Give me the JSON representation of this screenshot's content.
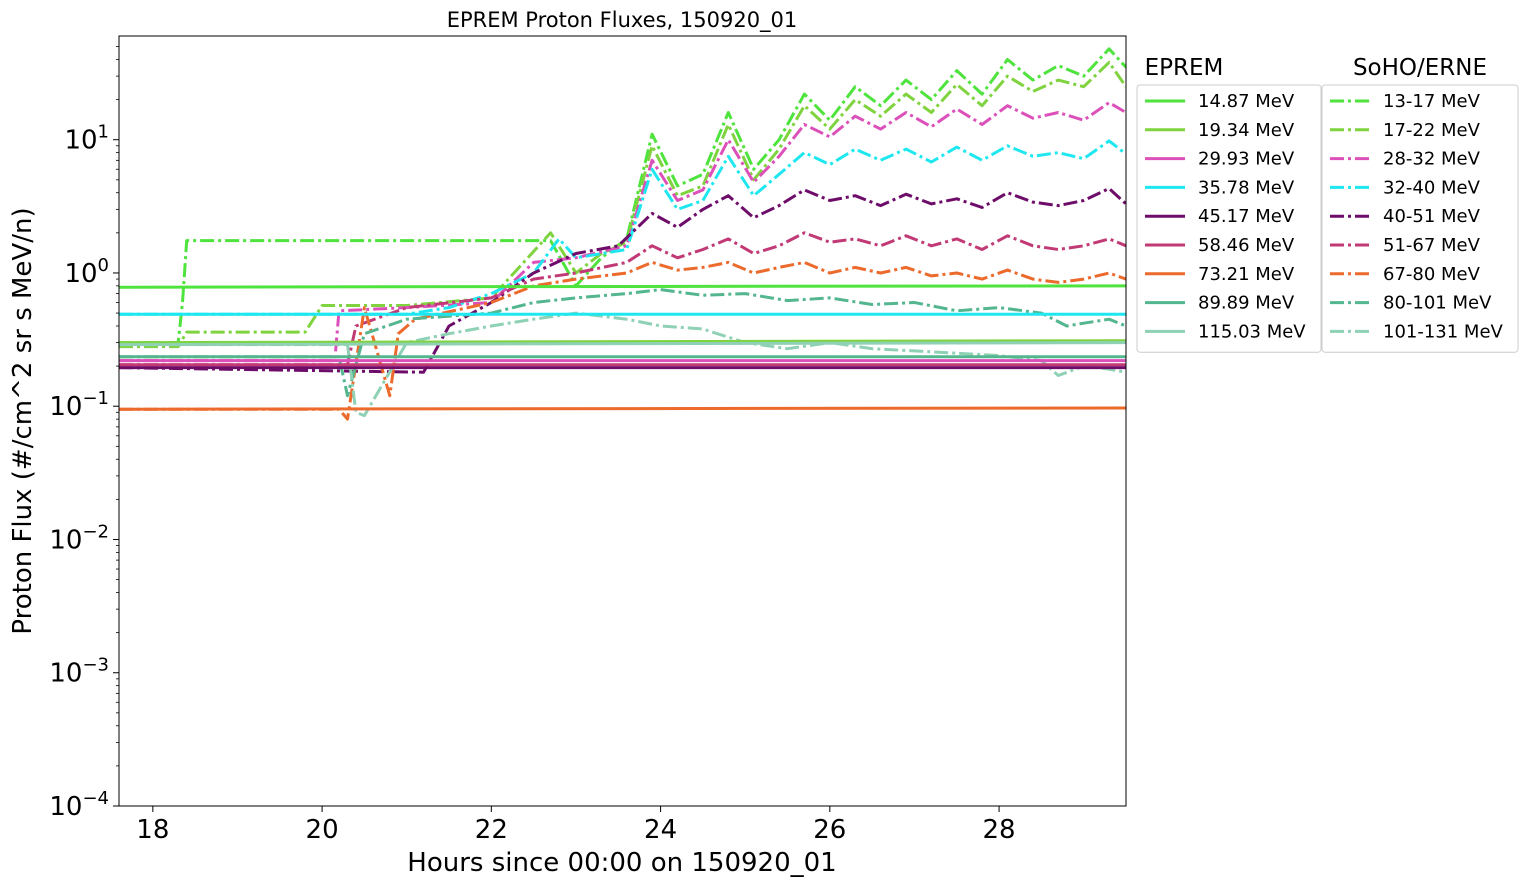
{
  "chart_data": {
    "type": "line",
    "title": "EPREM Proton Fluxes, 150920_01",
    "xlabel": "Hours since 00:00 on 150920_01",
    "ylabel": "Proton Flux (#/cm^2 sr s MeV/n)",
    "xlim": [
      17.6,
      29.5
    ],
    "ylim": [
      0.0001,
      60
    ],
    "y_scale": "log",
    "grid": false,
    "x_ticks": [
      {
        "value": 18,
        "label": "18"
      },
      {
        "value": 20,
        "label": "20"
      },
      {
        "value": 22,
        "label": "22"
      },
      {
        "value": 24,
        "label": "24"
      },
      {
        "value": 26,
        "label": "26"
      },
      {
        "value": 28,
        "label": "28"
      }
    ],
    "y_ticks": [
      {
        "value": 0.0001,
        "base": "10",
        "exp": "−4"
      },
      {
        "value": 0.001,
        "base": "10",
        "exp": "−3"
      },
      {
        "value": 0.01,
        "base": "10",
        "exp": "−2"
      },
      {
        "value": 0.1,
        "base": "10",
        "exp": "−1"
      },
      {
        "value": 1,
        "base": "10",
        "exp": "0"
      },
      {
        "value": 10,
        "base": "10",
        "exp": "1"
      }
    ],
    "legends": [
      {
        "title": "EPREM",
        "placement": "outside-right",
        "style": "solid",
        "entries": [
          {
            "label": "14.87 MeV",
            "color": "#4fe33d"
          },
          {
            "label": "19.34 MeV",
            "color": "#7fd33f"
          },
          {
            "label": "29.93 MeV",
            "color": "#dc50b9"
          },
          {
            "label": "35.78 MeV",
            "color": "#1fe7f0"
          },
          {
            "label": "45.17 MeV",
            "color": "#6e0c6a"
          },
          {
            "label": "58.46 MeV",
            "color": "#c13a76"
          },
          {
            "label": "73.21 MeV",
            "color": "#ec6a2c"
          },
          {
            "label": "89.89 MeV",
            "color": "#54b68e"
          },
          {
            "label": "115.03 MeV",
            "color": "#8fd1b5"
          }
        ]
      },
      {
        "title": "SoHO/ERNE",
        "placement": "outside-right",
        "style": "dashdot",
        "entries": [
          {
            "label": "13-17 MeV",
            "color": "#4fe33d"
          },
          {
            "label": "17-22 MeV",
            "color": "#7fd33f"
          },
          {
            "label": "28-32 MeV",
            "color": "#dc50b9"
          },
          {
            "label": "32-40 MeV",
            "color": "#1fe7f0"
          },
          {
            "label": "40-51 MeV",
            "color": "#6e0c6a"
          },
          {
            "label": "51-67 MeV",
            "color": "#c13a76"
          },
          {
            "label": "67-80 MeV",
            "color": "#ec6a2c"
          },
          {
            "label": "80-101 MeV",
            "color": "#54b68e"
          },
          {
            "label": "101-131 MeV",
            "color": "#8fd1b5"
          }
        ]
      }
    ],
    "series": [
      {
        "name": "14.87 MeV",
        "style": "solid",
        "color": "#4fe33d",
        "x": [
          17.6,
          22.0,
          29.5
        ],
        "y": [
          0.78,
          0.79,
          0.8
        ]
      },
      {
        "name": "19.34 MeV",
        "style": "solid",
        "color": "#7fd33f",
        "x": [
          17.6,
          29.5
        ],
        "y": [
          0.3,
          0.31
        ]
      },
      {
        "name": "29.93 MeV",
        "style": "solid",
        "color": "#dc50b9",
        "x": [
          17.6,
          29.5
        ],
        "y": [
          0.22,
          0.22
        ]
      },
      {
        "name": "35.78 MeV",
        "style": "solid",
        "color": "#1fe7f0",
        "x": [
          17.6,
          29.5
        ],
        "y": [
          0.49,
          0.49
        ]
      },
      {
        "name": "45.17 MeV",
        "style": "solid",
        "color": "#6e0c6a",
        "x": [
          17.6,
          29.5
        ],
        "y": [
          0.195,
          0.195
        ]
      },
      {
        "name": "58.46 MeV",
        "style": "solid",
        "color": "#c13a76",
        "x": [
          17.6,
          29.5
        ],
        "y": [
          0.205,
          0.205
        ]
      },
      {
        "name": "73.21 MeV",
        "style": "solid",
        "color": "#ec6a2c",
        "x": [
          17.6,
          29.5
        ],
        "y": [
          0.095,
          0.097
        ]
      },
      {
        "name": "89.89 MeV",
        "style": "solid",
        "color": "#54b68e",
        "x": [
          17.6,
          29.5
        ],
        "y": [
          0.235,
          0.235
        ]
      },
      {
        "name": "115.03 MeV",
        "style": "solid",
        "color": "#8fd1b5",
        "x": [
          17.6,
          29.5
        ],
        "y": [
          0.29,
          0.3
        ]
      },
      {
        "name": "13-17 MeV",
        "style": "dashdot",
        "color": "#4fe33d",
        "x": [
          17.6,
          18.3,
          18.35,
          18.4,
          20.0,
          22.0,
          22.7,
          23.0,
          23.3,
          23.6,
          23.9,
          24.2,
          24.5,
          24.8,
          25.1,
          25.4,
          25.7,
          26.0,
          26.3,
          26.6,
          26.9,
          27.2,
          27.5,
          27.8,
          28.1,
          28.4,
          28.7,
          29.0,
          29.3,
          29.5
        ],
        "y": [
          0.3,
          0.3,
          0.6,
          1.75,
          1.75,
          1.75,
          1.75,
          0.8,
          1.3,
          1.8,
          11.0,
          4.5,
          5.5,
          16.0,
          6.0,
          10.0,
          22.0,
          14.0,
          25.0,
          18.0,
          28.0,
          20.0,
          33.0,
          22.0,
          40.0,
          28.0,
          36.0,
          30.0,
          48.0,
          35.0
        ]
      },
      {
        "name": "17-22 MeV",
        "style": "dashdot",
        "color": "#7fd33f",
        "x": [
          17.6,
          18.3,
          18.4,
          19.8,
          20.0,
          21.0,
          22.0,
          22.7,
          23.0,
          23.3,
          23.6,
          23.9,
          24.2,
          24.5,
          24.8,
          25.1,
          25.4,
          25.7,
          26.0,
          26.3,
          26.6,
          26.9,
          27.2,
          27.5,
          27.8,
          28.1,
          28.4,
          28.7,
          29.0,
          29.3,
          29.5
        ],
        "y": [
          0.28,
          0.28,
          0.36,
          0.36,
          0.57,
          0.57,
          0.65,
          2.0,
          1.0,
          1.4,
          1.7,
          9.0,
          3.8,
          4.5,
          13.0,
          5.0,
          8.5,
          18.0,
          12.0,
          20.0,
          15.0,
          22.0,
          16.0,
          26.0,
          18.0,
          30.0,
          23.0,
          28.0,
          25.0,
          38.0,
          25.0
        ]
      },
      {
        "name": "28-32 MeV",
        "style": "dashdot",
        "color": "#dc50b9",
        "x": [
          17.6,
          20.15,
          20.2,
          21.0,
          22.0,
          22.5,
          23.0,
          23.6,
          23.9,
          24.2,
          24.5,
          24.8,
          25.1,
          25.4,
          25.7,
          26.0,
          26.3,
          26.6,
          26.9,
          27.2,
          27.5,
          27.8,
          28.1,
          28.4,
          28.7,
          29.0,
          29.3,
          29.5
        ],
        "y": [
          0.22,
          0.22,
          0.52,
          0.55,
          0.6,
          1.2,
          1.3,
          1.6,
          7.0,
          3.5,
          4.2,
          10.0,
          4.8,
          7.5,
          13.0,
          10.5,
          15.0,
          12.0,
          16.0,
          12.5,
          17.0,
          13.0,
          18.0,
          14.5,
          16.0,
          14.0,
          19.0,
          16.0
        ]
      },
      {
        "name": "32-40 MeV",
        "style": "dashdot",
        "color": "#1fe7f0",
        "x": [
          17.6,
          21.0,
          21.5,
          22.0,
          22.5,
          22.8,
          23.0,
          23.6,
          23.9,
          24.2,
          24.5,
          24.8,
          25.1,
          25.4,
          25.7,
          26.0,
          26.3,
          26.6,
          26.9,
          27.2,
          27.5,
          27.8,
          28.1,
          28.4,
          28.7,
          29.0,
          29.3,
          29.5
        ],
        "y": [
          0.49,
          0.49,
          0.55,
          0.7,
          1.0,
          1.8,
          1.3,
          1.5,
          6.0,
          3.0,
          3.5,
          7.5,
          3.8,
          5.5,
          8.0,
          6.5,
          8.5,
          7.0,
          8.5,
          6.8,
          8.8,
          7.0,
          9.0,
          7.5,
          8.0,
          7.2,
          9.8,
          7.8
        ]
      },
      {
        "name": "40-51 MeV",
        "style": "dashdot",
        "color": "#6e0c6a",
        "x": [
          17.6,
          21.2,
          21.5,
          22.0,
          22.5,
          23.0,
          23.5,
          23.9,
          24.2,
          24.5,
          24.8,
          25.1,
          25.4,
          25.7,
          26.0,
          26.3,
          26.6,
          26.9,
          27.2,
          27.5,
          27.8,
          28.1,
          28.4,
          28.7,
          29.0,
          29.3,
          29.5
        ],
        "y": [
          0.195,
          0.18,
          0.4,
          0.6,
          1.0,
          1.4,
          1.6,
          2.8,
          2.2,
          3.0,
          3.8,
          2.6,
          3.2,
          4.2,
          3.5,
          3.8,
          3.2,
          3.9,
          3.3,
          3.6,
          3.1,
          4.0,
          3.4,
          3.2,
          3.5,
          4.3,
          3.3
        ]
      },
      {
        "name": "51-67 MeV",
        "style": "dashdot",
        "color": "#c13a76",
        "x": [
          17.6,
          20.3,
          20.4,
          21.0,
          22.0,
          22.5,
          23.0,
          23.6,
          23.9,
          24.2,
          24.5,
          24.8,
          25.1,
          25.4,
          25.7,
          26.0,
          26.3,
          26.6,
          26.9,
          27.2,
          27.5,
          27.8,
          28.1,
          28.4,
          28.7,
          29.0,
          29.3,
          29.5
        ],
        "y": [
          0.205,
          0.205,
          0.4,
          0.55,
          0.65,
          0.9,
          1.0,
          1.2,
          1.6,
          1.3,
          1.5,
          1.8,
          1.4,
          1.6,
          2.0,
          1.7,
          1.8,
          1.6,
          1.9,
          1.6,
          1.8,
          1.5,
          1.9,
          1.6,
          1.5,
          1.6,
          1.8,
          1.6
        ]
      },
      {
        "name": "67-80 MeV",
        "style": "dashdot",
        "color": "#ec6a2c",
        "x": [
          17.6,
          20.2,
          20.3,
          20.5,
          20.8,
          20.9,
          21.1,
          22.0,
          22.5,
          23.0,
          23.6,
          23.9,
          24.2,
          24.5,
          24.8,
          25.1,
          25.4,
          25.7,
          26.0,
          26.3,
          26.6,
          26.9,
          27.2,
          27.5,
          27.8,
          28.1,
          28.4,
          28.7,
          29.0,
          29.3,
          29.5
        ],
        "y": [
          0.095,
          0.095,
          0.08,
          0.55,
          0.12,
          0.35,
          0.45,
          0.6,
          0.8,
          0.9,
          1.0,
          1.2,
          1.05,
          1.1,
          1.2,
          1.0,
          1.1,
          1.2,
          1.0,
          1.1,
          1.0,
          1.1,
          0.95,
          1.0,
          0.9,
          1.05,
          0.9,
          0.85,
          0.9,
          1.0,
          0.9
        ]
      },
      {
        "name": "80-101 MeV",
        "style": "dashdot",
        "color": "#54b68e",
        "x": [
          17.6,
          20.2,
          20.3,
          20.5,
          21.0,
          22.0,
          22.5,
          23.0,
          23.6,
          24.0,
          24.5,
          25.0,
          25.5,
          26.0,
          26.5,
          27.0,
          27.5,
          28.0,
          28.5,
          28.8,
          29.0,
          29.3,
          29.5
        ],
        "y": [
          0.235,
          0.235,
          0.12,
          0.35,
          0.45,
          0.5,
          0.6,
          0.65,
          0.7,
          0.75,
          0.68,
          0.7,
          0.62,
          0.65,
          0.58,
          0.6,
          0.52,
          0.55,
          0.5,
          0.4,
          0.42,
          0.45,
          0.4
        ]
      },
      {
        "name": "101-131 MeV",
        "style": "dashdot",
        "color": "#8fd1b5",
        "x": [
          17.6,
          20.3,
          20.4,
          20.5,
          21.0,
          21.5,
          22.0,
          22.5,
          23.0,
          23.6,
          24.0,
          24.5,
          25.0,
          25.5,
          26.0,
          26.5,
          27.0,
          27.5,
          28.0,
          28.5,
          28.7,
          29.0,
          29.3,
          29.5
        ],
        "y": [
          0.29,
          0.29,
          0.09,
          0.085,
          0.3,
          0.35,
          0.4,
          0.45,
          0.5,
          0.45,
          0.4,
          0.38,
          0.3,
          0.27,
          0.3,
          0.27,
          0.26,
          0.25,
          0.24,
          0.22,
          0.17,
          0.2,
          0.19,
          0.18
        ]
      }
    ]
  }
}
